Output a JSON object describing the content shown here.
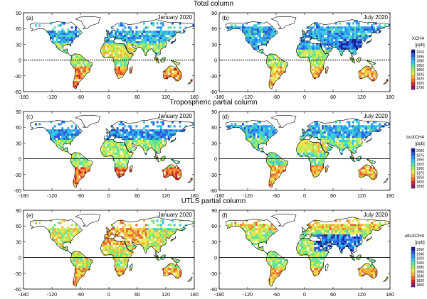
{
  "rows": [
    {
      "title": "Total column",
      "colorbar": {
        "variable": "XCH4",
        "unit": "[ppb]",
        "ticks": [
          "1910",
          "1895",
          "1880",
          "1865",
          "1850",
          "1835",
          "1820",
          "1805",
          "1790"
        ]
      },
      "panels": [
        {
          "letter": "(a)",
          "month": "January 2020"
        },
        {
          "letter": "(b)",
          "month": "July 2020"
        }
      ]
    },
    {
      "title": "Tropospheric partial column",
      "colorbar": {
        "variable": "troXCH4",
        "unit": "[ppb]",
        "ticks": [
          "2000",
          "1975",
          "1950",
          "1925",
          "1900",
          "1875",
          "1850",
          "1825",
          "1800"
        ]
      },
      "panels": [
        {
          "letter": "(c)",
          "month": "January 2020"
        },
        {
          "letter": "(d)",
          "month": "July 2020"
        }
      ]
    },
    {
      "title": "UTLS partial column",
      "colorbar": {
        "variable": "utlsXCH4",
        "unit": "[ppb]",
        "ticks": [
          "1960",
          "1940",
          "1920",
          "1900",
          "1880",
          "1860",
          "1840",
          "1820",
          "1800"
        ]
      },
      "panels": [
        {
          "letter": "(e)",
          "month": "January 2020"
        },
        {
          "letter": "(f)",
          "month": "July 2020"
        }
      ]
    }
  ],
  "axes": {
    "x_ticks": [
      "-180",
      "-120",
      "-60",
      "0",
      "60",
      "120",
      "180"
    ],
    "y_ticks": [
      "90",
      "60",
      "30",
      "0",
      "-30",
      "-60"
    ]
  },
  "colormap": [
    "#1e1e9a",
    "#2a5ad8",
    "#2f96f0",
    "#36c8e8",
    "#5ee0a0",
    "#a0ec60",
    "#e8e850",
    "#f5b13c",
    "#ef6a2e",
    "#d42a2a",
    "#8a1a7a"
  ]
}
